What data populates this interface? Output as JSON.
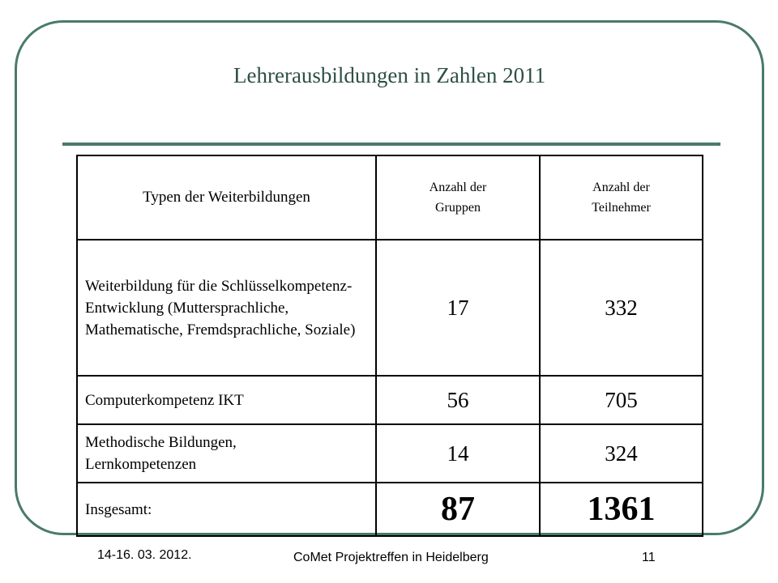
{
  "slide": {
    "title": "Lehrerausbildungen in Zahlen 2011",
    "table": {
      "headers": [
        "Typen der Weiterbildungen",
        "Anzahl der Gruppen",
        "Anzahl der Teilnehmer"
      ],
      "rows": [
        {
          "label": "Weiterbildung für die Schlüsselkompetenz-Entwicklung (Muttersprachliche, Mathematische, Fremdsprachliche, Soziale)",
          "groups": "17",
          "participants": "332"
        },
        {
          "label": "Computerkompetenz IKT",
          "groups": "56",
          "participants": "705"
        },
        {
          "label": "Methodische Bildungen, Lernkompetenzen",
          "groups": "14",
          "participants": "324"
        },
        {
          "label": "Insgesamt:",
          "groups": "87",
          "participants": "1361"
        }
      ]
    }
  },
  "footer": {
    "date": "14-16. 03. 2012.",
    "event": "CoMet Projektreffen in Heidelberg",
    "page": "11"
  },
  "colors": {
    "frame": "#4a7a6a",
    "title": "#2e4f47"
  }
}
